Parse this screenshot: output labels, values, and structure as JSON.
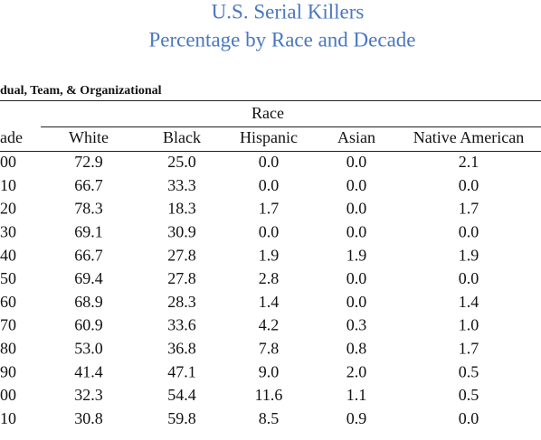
{
  "title": "U.S. Serial Killers",
  "subtitle": "Percentage by Race and Decade",
  "section": "dual, Team, & Organizational",
  "table": {
    "group_header": "Race",
    "columns": [
      "ade",
      "White",
      "Black",
      "Hispanic",
      "Asian",
      "Native American"
    ],
    "rows": [
      [
        "00",
        "72.9",
        "25.0",
        "0.0",
        "0.0",
        "2.1"
      ],
      [
        "10",
        "66.7",
        "33.3",
        "0.0",
        "0.0",
        "0.0"
      ],
      [
        "20",
        "78.3",
        "18.3",
        "1.7",
        "0.0",
        "1.7"
      ],
      [
        "30",
        "69.1",
        "30.9",
        "0.0",
        "0.0",
        "0.0"
      ],
      [
        "40",
        "66.7",
        "27.8",
        "1.9",
        "1.9",
        "1.9"
      ],
      [
        "50",
        "69.4",
        "27.8",
        "2.8",
        "0.0",
        "0.0"
      ],
      [
        "60",
        "68.9",
        "28.3",
        "1.4",
        "0.0",
        "1.4"
      ],
      [
        "70",
        "60.9",
        "33.6",
        "4.2",
        "0.3",
        "1.0"
      ],
      [
        "80",
        "53.0",
        "36.8",
        "7.8",
        "0.8",
        "1.7"
      ],
      [
        "90",
        "41.4",
        "47.1",
        "9.0",
        "2.0",
        "0.5"
      ],
      [
        "00",
        "32.3",
        "54.4",
        "11.6",
        "1.1",
        "0.5"
      ],
      [
        "10",
        "30.8",
        "59.8",
        "8.5",
        "0.9",
        "0.0"
      ]
    ]
  }
}
